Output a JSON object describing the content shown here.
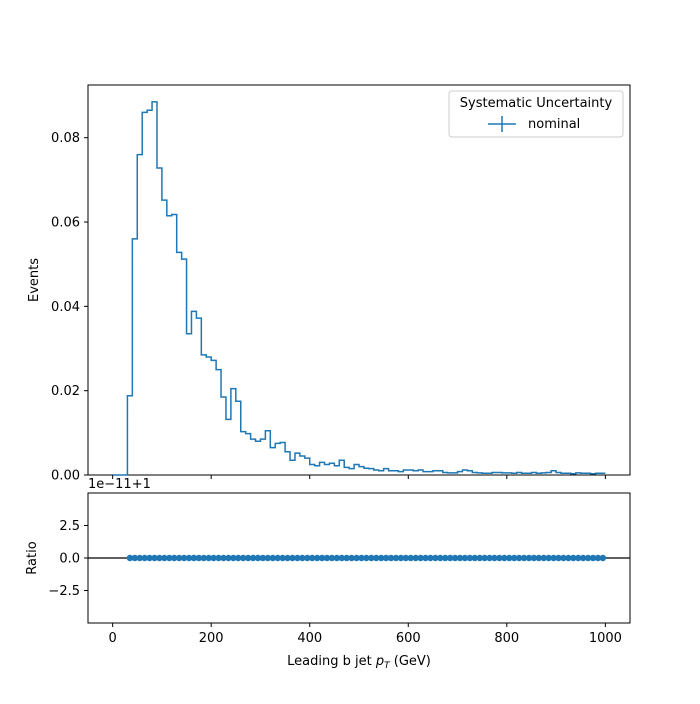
{
  "chart_data": [
    {
      "type": "step",
      "panel": "main",
      "ylabel": "Events",
      "xlim": [
        -50,
        1050
      ],
      "ylim": [
        0,
        0.0925
      ],
      "yticks": [
        0.0,
        0.02,
        0.04,
        0.06,
        0.08
      ],
      "ytick_labels": [
        "0.00",
        "0.02",
        "0.04",
        "0.06",
        "0.08"
      ],
      "legend": {
        "title": "Systematic Uncertainty",
        "placement": "top-right",
        "entries": [
          "nominal"
        ]
      },
      "color": "#1f77b4",
      "bin_width": 10,
      "x_start": 0,
      "series": [
        {
          "name": "nominal",
          "values": [
            0.0,
            0.0,
            0.0,
            0.0188,
            0.056,
            0.076,
            0.086,
            0.0865,
            0.0885,
            0.0728,
            0.0652,
            0.0615,
            0.0618,
            0.0528,
            0.0512,
            0.0335,
            0.0388,
            0.0372,
            0.0285,
            0.028,
            0.0272,
            0.025,
            0.0185,
            0.0132,
            0.0205,
            0.0175,
            0.0103,
            0.0098,
            0.0085,
            0.008,
            0.0085,
            0.0105,
            0.0065,
            0.0075,
            0.0077,
            0.0055,
            0.0035,
            0.0052,
            0.0045,
            0.004,
            0.0025,
            0.0022,
            0.003,
            0.0025,
            0.0028,
            0.0022,
            0.0035,
            0.0018,
            0.0015,
            0.0025,
            0.002,
            0.0016,
            0.0015,
            0.0012,
            0.001,
            0.0015,
            0.001,
            0.001,
            0.0008,
            0.0012,
            0.0012,
            0.001,
            0.0012,
            0.0008,
            0.0008,
            0.001,
            0.001,
            0.0006,
            0.0005,
            0.0005,
            0.0008,
            0.0012,
            0.001,
            0.0006,
            0.0005,
            0.0004,
            0.0004,
            0.0006,
            0.0006,
            0.0005,
            0.0005,
            0.0004,
            0.0006,
            0.0004,
            0.0004,
            0.0006,
            0.0004,
            0.0005,
            0.0006,
            0.001,
            0.0006,
            0.0004,
            0.0004,
            0.0003,
            0.0005,
            0.0004,
            0.0004,
            0.0003,
            0.0004,
            0.0004
          ]
        }
      ]
    },
    {
      "type": "scatter",
      "panel": "ratio",
      "ylabel": "Ratio",
      "xlabel_text": "Leading b jet  ",
      "xlabel_math": "p",
      "xlabel_sub": "T",
      "xlabel_unit": " (GeV)",
      "offset_label": "1e−11+1",
      "xlim": [
        -50,
        1050
      ],
      "ylim": [
        -5,
        5
      ],
      "xticks": [
        0,
        200,
        400,
        600,
        800,
        1000
      ],
      "xtick_labels": [
        "0",
        "200",
        "400",
        "600",
        "800",
        "1000"
      ],
      "yticks": [
        2.5,
        0.0,
        -2.5
      ],
      "ytick_labels": [
        "2.5",
        "0.0",
        "−2.5"
      ],
      "reference_line": 0,
      "color": "#1f77b4",
      "series": [
        {
          "x_start": 35,
          "x_step": 10,
          "count": 97,
          "value": 0.0
        }
      ]
    }
  ]
}
